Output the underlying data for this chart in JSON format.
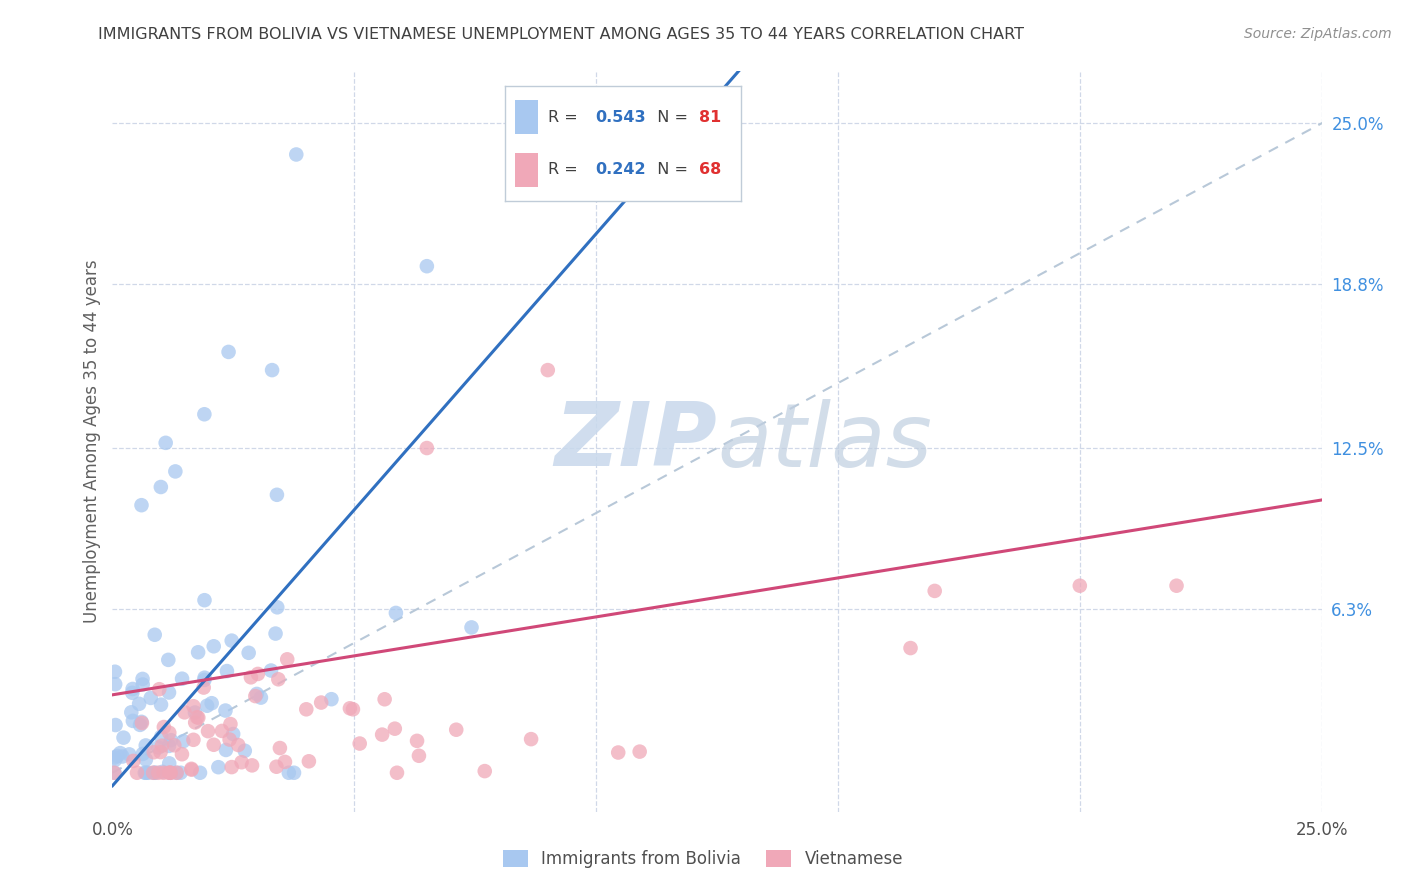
{
  "title": "IMMIGRANTS FROM BOLIVIA VS VIETNAMESE UNEMPLOYMENT AMONG AGES 35 TO 44 YEARS CORRELATION CHART",
  "source": "Source: ZipAtlas.com",
  "ylabel": "Unemployment Among Ages 35 to 44 years",
  "xlim": [
    0.0,
    0.25
  ],
  "ylim": [
    -0.015,
    0.27
  ],
  "bolivia_R": 0.543,
  "bolivia_N": 81,
  "vietnamese_R": 0.242,
  "vietnamese_N": 68,
  "bolivia_color": "#a8c8f0",
  "vietnamese_color": "#f0a8b8",
  "bolivia_line_color": "#3070c0",
  "vietnamese_line_color": "#d04878",
  "diagonal_color": "#b8c8d8",
  "watermark_zip_color": "#c0cfe0",
  "watermark_atlas_color": "#c0cfe0",
  "title_color": "#404040",
  "right_axis_color": "#4090e0",
  "source_color": "#909090",
  "background_color": "#ffffff",
  "grid_color": "#d0d8e8",
  "legend_border_color": "#c0ccd8",
  "ytick_vals": [
    0.063,
    0.125,
    0.188,
    0.25
  ],
  "ytick_labels": [
    "6.3%",
    "12.5%",
    "18.8%",
    "25.0%"
  ],
  "xtick_vals": [
    0.0,
    0.05,
    0.1,
    0.15,
    0.2,
    0.25
  ],
  "xtick_labels": [
    "0.0%",
    "",
    "",
    "",
    "",
    "25.0%"
  ]
}
